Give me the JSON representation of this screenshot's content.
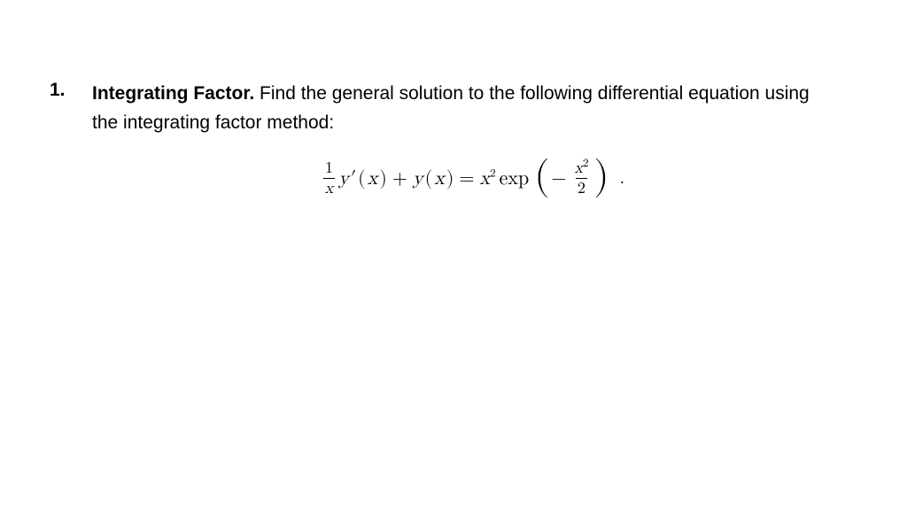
{
  "problem": {
    "number": "1.",
    "title": "Integrating Factor.",
    "prompt_line1": " Find the general solution to the following differential equation using",
    "prompt_line2": "the integrating factor method:",
    "equation": {
      "frac1_top": "1",
      "frac1_bot_var": "x",
      "y": "y",
      "prime": "′",
      "open_paren": "(",
      "x_var": "x",
      "close_paren": ")",
      "plus": "+",
      "equals": "=",
      "x_sq_base": "x",
      "x_sq_exp": "2",
      "exp_word": "exp",
      "big_open": "(",
      "minus": "−",
      "frac2_top_base": "x",
      "frac2_top_exp": "2",
      "frac2_bot": "2",
      "big_close": ")",
      "period": "."
    }
  },
  "style": {
    "background": "#ffffff",
    "text_color": "#000000",
    "body_fontsize": 21,
    "eq_fontsize": 22
  }
}
